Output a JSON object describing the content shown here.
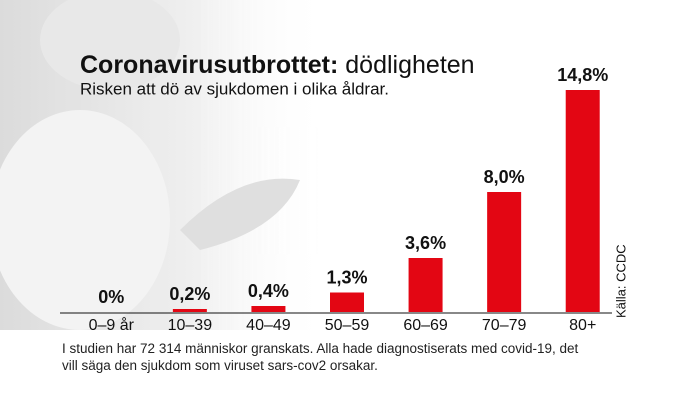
{
  "chart_data": {
    "type": "bar",
    "title": [
      "Coronavirusutbrottet:",
      "dödligheten"
    ],
    "subtitle": "Risken att dö av sjukdomen i olika åldrar.",
    "categories": [
      "0–9 år",
      "10–39",
      "40–49",
      "50–59",
      "60–69",
      "70–79",
      "80+"
    ],
    "values": [
      0,
      0.2,
      0.4,
      1.3,
      3.6,
      8.0,
      14.8
    ],
    "value_labels": [
      "0%",
      "0,2%",
      "0,4%",
      "1,3%",
      "3,6%",
      "8,0%",
      "14,8%"
    ],
    "color": "#e30613",
    "source": "Källa: CCDC",
    "note": "I studien har 72 314 människor granskats. Alla hade diagnostiserats med covid-19, det vill säga den sjukdom som viruset sars-cov2 orsakar."
  }
}
